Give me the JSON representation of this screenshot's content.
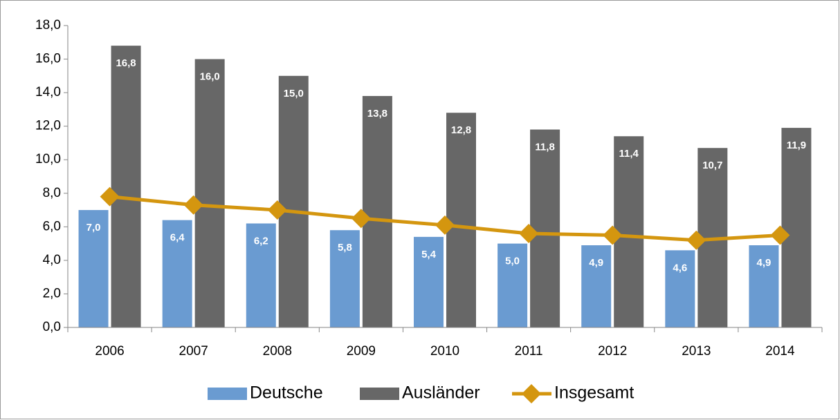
{
  "chart_data": {
    "type": "bar",
    "categories": [
      "2006",
      "2007",
      "2008",
      "2009",
      "2010",
      "2011",
      "2012",
      "2013",
      "2014"
    ],
    "series": [
      {
        "name": "Deutsche",
        "type": "bar",
        "color": "#6a9bd1",
        "values": [
          7.0,
          6.4,
          6.2,
          5.8,
          5.4,
          5.0,
          4.9,
          4.6,
          4.9
        ],
        "value_labels": [
          "7,0",
          "6,4",
          "6,2",
          "5,8",
          "5,4",
          "5,0",
          "4,9",
          "4,6",
          "4,9"
        ]
      },
      {
        "name": "Ausländer",
        "type": "bar",
        "color": "#676767",
        "values": [
          16.8,
          16.0,
          15.0,
          13.8,
          12.8,
          11.8,
          11.4,
          10.7,
          11.9
        ],
        "value_labels": [
          "16,8",
          "16,0",
          "15,0",
          "13,8",
          "12,8",
          "11,8",
          "11,4",
          "10,7",
          "11,9"
        ]
      },
      {
        "name": "Insgesamt",
        "type": "line",
        "color": "#d4960f",
        "values": [
          7.8,
          7.3,
          7.0,
          6.5,
          6.1,
          5.6,
          5.5,
          5.2,
          5.5
        ]
      }
    ],
    "ylim": [
      0,
      18
    ],
    "yticks": [
      {
        "value": 0,
        "label": "0,0"
      },
      {
        "value": 2,
        "label": "2,0"
      },
      {
        "value": 4,
        "label": "4,0"
      },
      {
        "value": 6,
        "label": "6,0"
      },
      {
        "value": 8,
        "label": "8,0"
      },
      {
        "value": 10,
        "label": "10,0"
      },
      {
        "value": 12,
        "label": "12,0"
      },
      {
        "value": 14,
        "label": "14,0"
      },
      {
        "value": 16,
        "label": "16,0"
      },
      {
        "value": 18,
        "label": "18,0"
      }
    ],
    "grid": false,
    "legend": "bottom"
  }
}
